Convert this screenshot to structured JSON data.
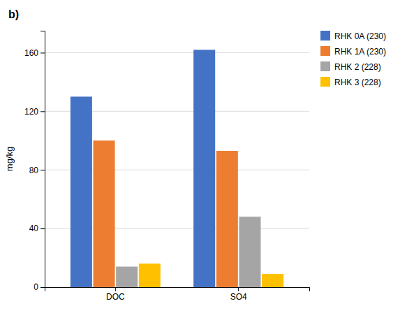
{
  "chart_data": {
    "type": "bar",
    "title": "b)",
    "categories": [
      "DOC",
      "SO4"
    ],
    "series": [
      {
        "name": "RHK 0A (230)",
        "color": "#4472C4",
        "values": [
          130,
          162
        ]
      },
      {
        "name": "RHK 1A (230)",
        "color": "#ED7D31",
        "values": [
          100,
          93
        ]
      },
      {
        "name": "RHK 2 (228)",
        "color": "#A5A5A5",
        "values": [
          14,
          48
        ]
      },
      {
        "name": "RHK 3 (228)",
        "color": "#FFC000",
        "values": [
          16,
          9
        ]
      }
    ],
    "ylabel": "mg/kg",
    "ylim": [
      0,
      175
    ],
    "yticks": [
      0,
      40,
      80,
      120,
      160
    ],
    "grid": true,
    "legend": "upper right"
  }
}
